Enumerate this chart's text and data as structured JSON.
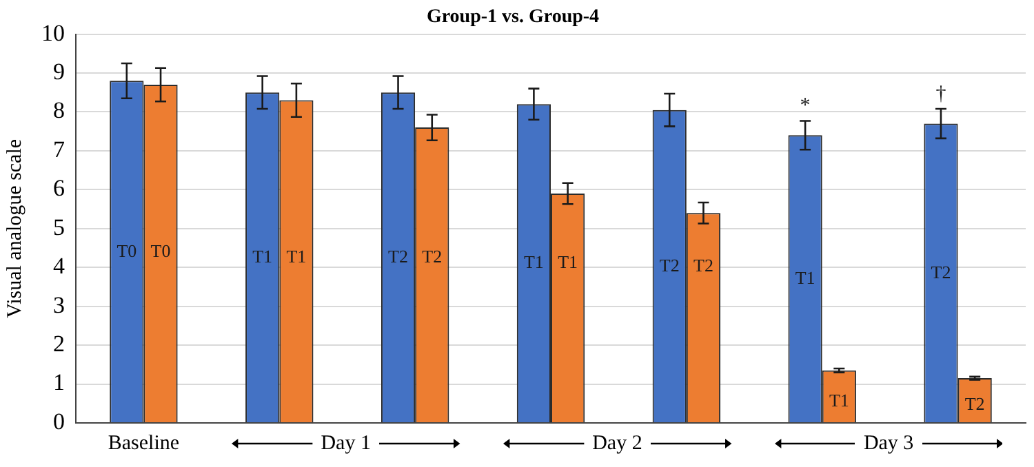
{
  "chart_data": {
    "type": "bar",
    "title": "Group-1 vs. Group-4",
    "ylabel": "Visual analogue scale",
    "categories": [
      "Baseline",
      null,
      null,
      null,
      null,
      null,
      null
    ],
    "series": [
      {
        "color": "#4472c4",
        "values": [
          8.8,
          8.5,
          8.5,
          8.2,
          8.05,
          7.4,
          7.7
        ],
        "errors": [
          0.45,
          0.42,
          0.42,
          0.4,
          0.42,
          0.37,
          0.38
        ],
        "value_labels": [
          "T0",
          "T1",
          "T2",
          "T1",
          "T2",
          "T1",
          "T2"
        ]
      },
      {
        "color": "#ed7d31",
        "values": [
          8.7,
          8.3,
          7.6,
          5.9,
          5.4,
          1.35,
          1.15
        ],
        "errors": [
          0.43,
          0.43,
          0.33,
          0.27,
          0.27,
          0.05,
          0.04
        ],
        "value_labels": [
          "T0",
          "T1",
          "T2",
          "T1",
          "T2",
          "T1",
          "T2"
        ]
      }
    ],
    "annotations": [
      "Day 1",
      "Day 2",
      "Day 3",
      "*",
      "†"
    ],
    "ylim": [
      0,
      10
    ],
    "yticks": [
      0,
      1,
      2,
      3,
      4,
      5,
      6,
      7,
      8,
      9,
      10
    ],
    "grid": "y",
    "legend": false
  }
}
